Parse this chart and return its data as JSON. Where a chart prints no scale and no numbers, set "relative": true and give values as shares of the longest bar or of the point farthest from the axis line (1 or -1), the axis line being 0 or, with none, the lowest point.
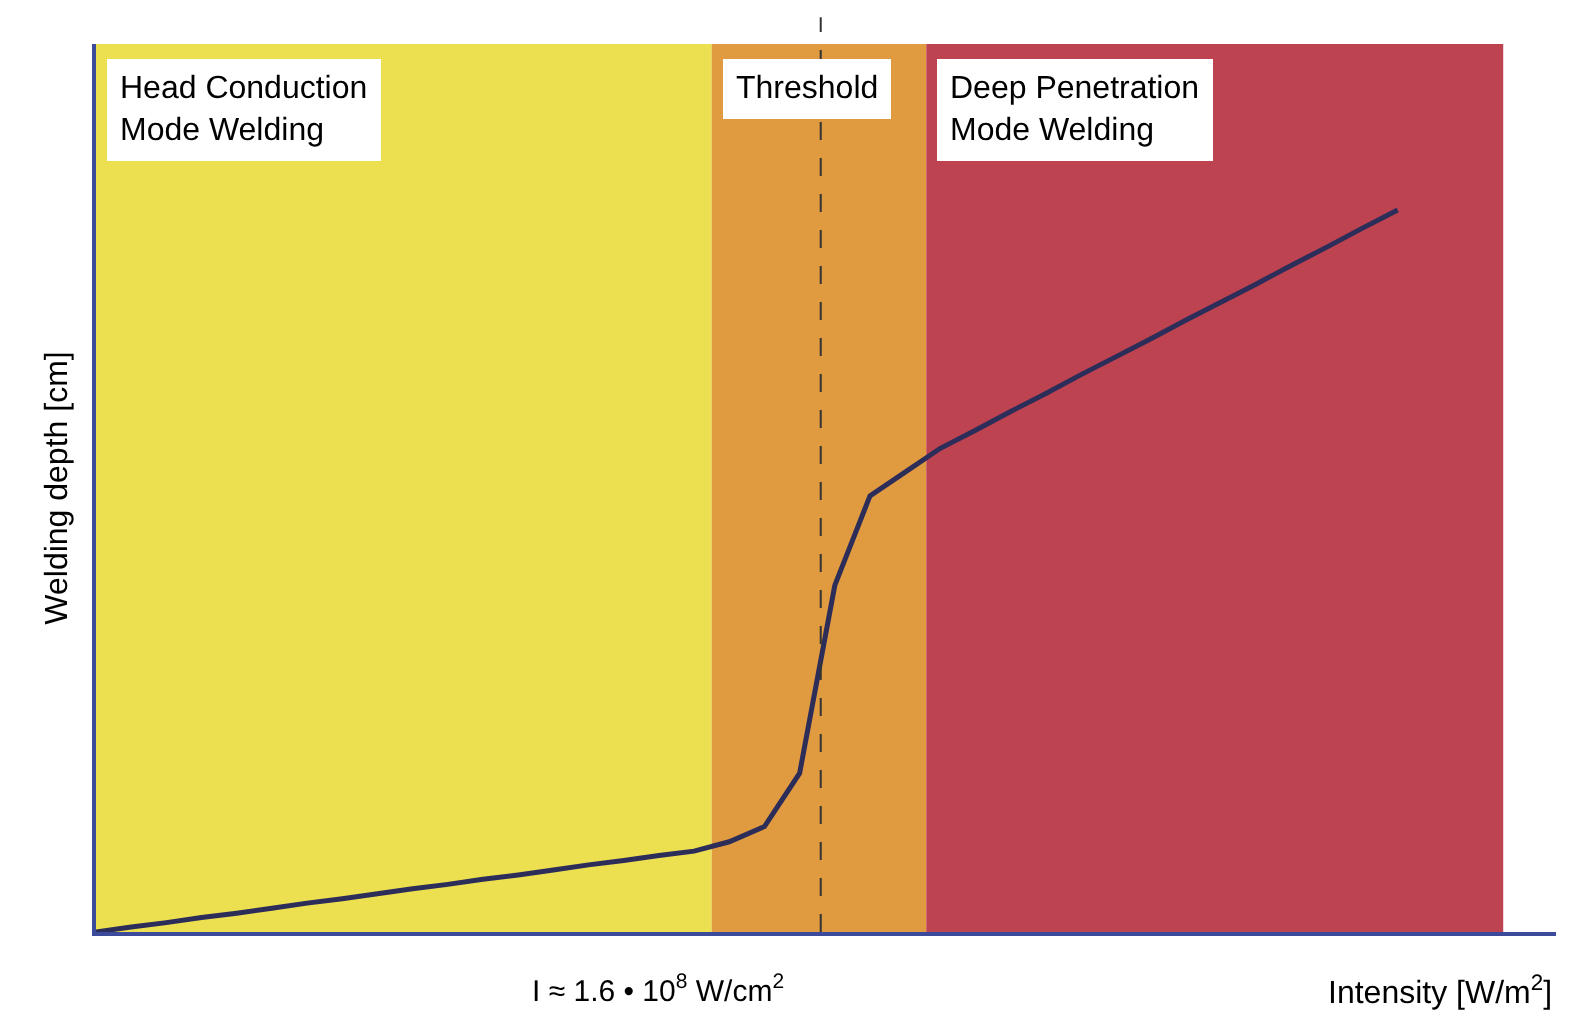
{
  "chart_data": {
    "type": "line",
    "relative": true,
    "ylabel": "Welding depth [cm]",
    "xlabel": "Intensity [W/m$^{2}$]",
    "categories": [
      null,
      null,
      null,
      null,
      null,
      null,
      null,
      null,
      null,
      null,
      null,
      null,
      null,
      null,
      null,
      null,
      null,
      null,
      null,
      null,
      null,
      null,
      null,
      null,
      null,
      null,
      null,
      null,
      null,
      null,
      null,
      null,
      null,
      null,
      null,
      null,
      null,
      null,
      null,
      null,
      null
    ],
    "series": [
      {
        "color": "#2d2d5a",
        "values": [
          0,
          0.007,
          0.013,
          0.02,
          0.026,
          0.033,
          0.04,
          0.046,
          0.053,
          0.06,
          0.066,
          0.073,
          0.079,
          0.086,
          0.093,
          0.099,
          0.106,
          0.112,
          0.125,
          0.146,
          0.22,
          0.48,
          0.604,
          0.637,
          0.67,
          0.695,
          0.721,
          0.746,
          0.772,
          0.797,
          0.822,
          0.848,
          0.873,
          0.898,
          0.924,
          0.949,
          0.975,
          1,
          null,
          null,
          null
        ]
      }
    ],
    "annotations": [
      "Head Conduction\nMode Welding",
      "Threshold",
      "Deep Penetration\nMode Welding",
      "I ≈ 1.6 • 10$^{8}$ W/cm$^{2}$"
    ],
    "grid": false,
    "marker": "none",
    "line_style": "solid"
  }
}
